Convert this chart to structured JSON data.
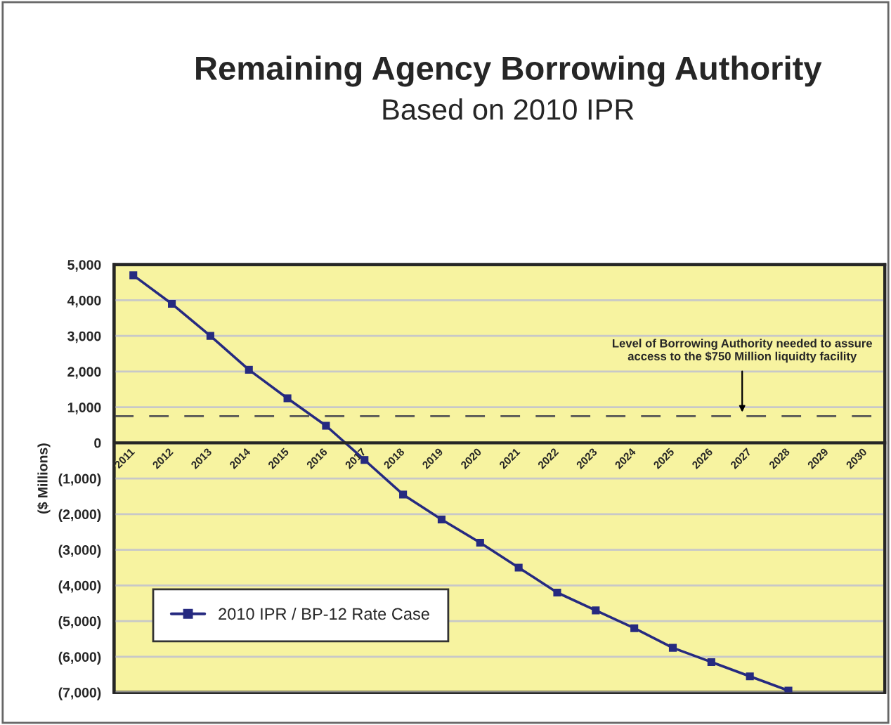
{
  "chart_data": {
    "type": "line",
    "title": "Remaining Agency Borrowing Authority",
    "subtitle": "Based on 2010 IPR",
    "ylabel": "($ Millions)",
    "categories": [
      "2011",
      "2012",
      "2013",
      "2014",
      "2015",
      "2016",
      "2017",
      "2018",
      "2019",
      "2020",
      "2021",
      "2022",
      "2023",
      "2024",
      "2025",
      "2026",
      "2027",
      "2028",
      "2029",
      "2030"
    ],
    "series": [
      {
        "name": "2010 IPR / BP-12 Rate Case",
        "color": "#262a80",
        "values": [
          4700,
          3900,
          3000,
          2050,
          1250,
          480,
          -480,
          -1450,
          -2150,
          -2800,
          -3500,
          -4200,
          -4700,
          -5200,
          -5750,
          -6150,
          -6550,
          -6950,
          null,
          null
        ]
      }
    ],
    "ylim": [
      -7000,
      5000
    ],
    "yticks": [
      {
        "value": -7000,
        "label": "(7,000)"
      },
      {
        "value": -6000,
        "label": "(6,000)"
      },
      {
        "value": -5000,
        "label": "(5,000)"
      },
      {
        "value": -4000,
        "label": "(4,000)"
      },
      {
        "value": -3000,
        "label": "(3,000)"
      },
      {
        "value": -2000,
        "label": "(2,000)"
      },
      {
        "value": -1000,
        "label": "(1,000)"
      },
      {
        "value": 0,
        "label": "0"
      },
      {
        "value": 1000,
        "label": "1,000"
      },
      {
        "value": 2000,
        "label": "2,000"
      },
      {
        "value": 3000,
        "label": "3,000"
      },
      {
        "value": 4000,
        "label": "4,000"
      },
      {
        "value": 5000,
        "label": "5,000"
      }
    ],
    "ref_lines": [
      {
        "axis": "y",
        "value": 750,
        "label": "Level of Borrowing Authority needed to assure access to the $750 Million liquidty facility",
        "color": "#555555",
        "line_style": "dashed"
      }
    ],
    "grid": "y",
    "legend": "bottom left",
    "marker": "square",
    "line_style": "solid"
  }
}
